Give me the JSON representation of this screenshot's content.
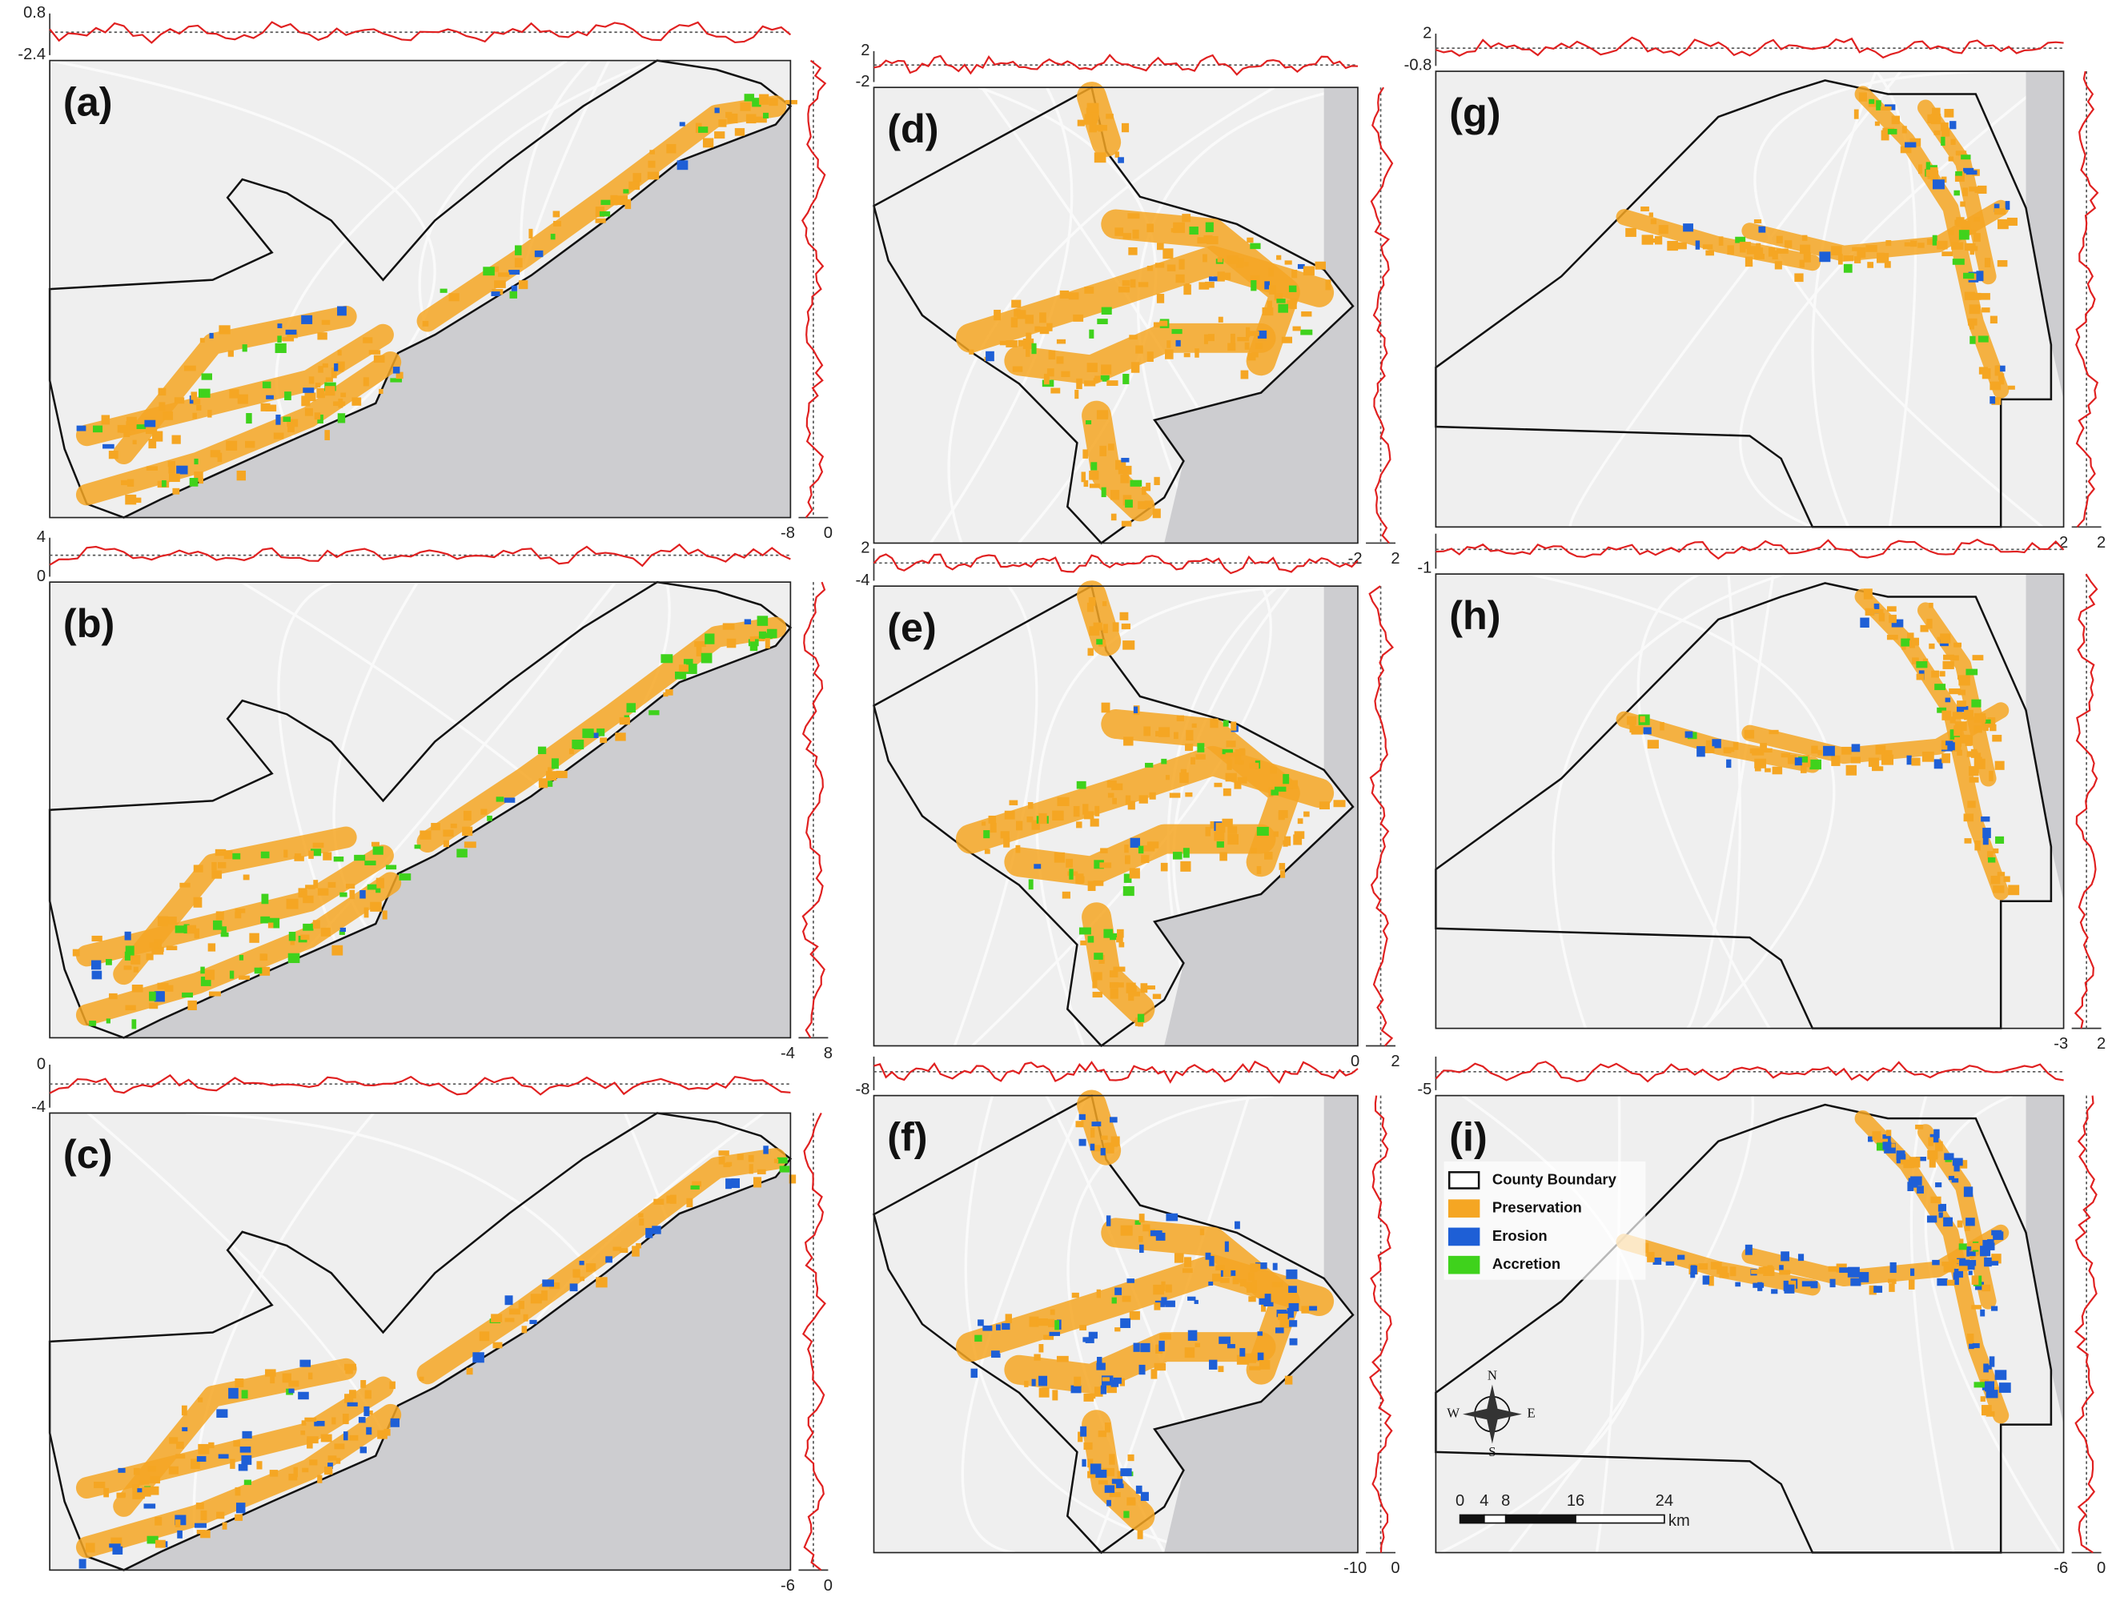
{
  "panels": [
    {
      "label": "(a)",
      "top_ticks": [
        "0.8",
        "-2.4"
      ],
      "right_ticks": [
        "-8",
        "0"
      ]
    },
    {
      "label": "(b)",
      "top_ticks": [
        "4",
        "0"
      ],
      "right_ticks": [
        "-4",
        "8"
      ]
    },
    {
      "label": "(c)",
      "top_ticks": [
        "0",
        "-4"
      ],
      "right_ticks": [
        "-6",
        "0"
      ]
    },
    {
      "label": "(d)",
      "top_ticks": [
        "2",
        "-2"
      ],
      "right_ticks": [
        "-2",
        "2"
      ]
    },
    {
      "label": "(e)",
      "top_ticks": [
        "2",
        "-4"
      ],
      "right_ticks": [
        "0",
        "2"
      ]
    },
    {
      "label": "(f)",
      "top_ticks": [
        "-8"
      ],
      "right_ticks": [
        "-10",
        "0"
      ]
    },
    {
      "label": "(g)",
      "top_ticks": [
        "2",
        "-0.8"
      ],
      "right_ticks": [
        "-2",
        "2"
      ]
    },
    {
      "label": "(h)",
      "top_ticks": [
        "-1"
      ],
      "right_ticks": [
        "-3",
        "2"
      ]
    },
    {
      "label": "(i)",
      "top_ticks": [
        "-5"
      ],
      "right_ticks": [
        "-6",
        "0"
      ]
    }
  ],
  "legend": {
    "items": [
      "County Boundary",
      "Preservation",
      "Erosion",
      "Accretion"
    ]
  },
  "compass": {
    "n": "N",
    "s": "S",
    "e": "E",
    "w": "W"
  },
  "scale_bar": {
    "labels": [
      "0",
      "4",
      "8",
      "16",
      "24"
    ],
    "unit": "km"
  }
}
